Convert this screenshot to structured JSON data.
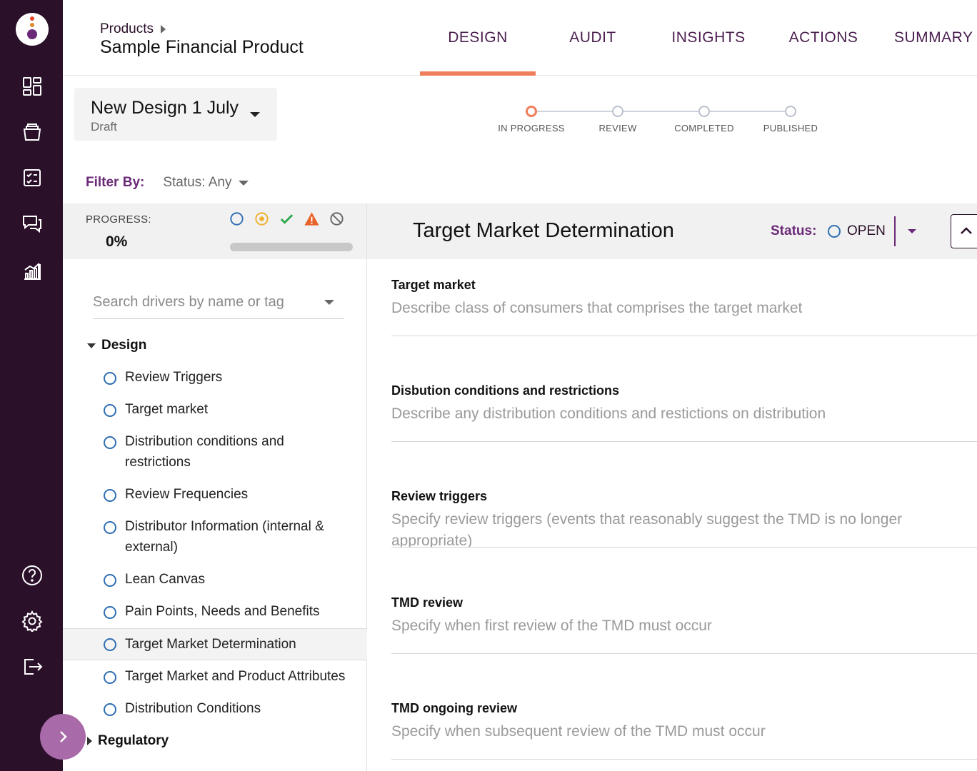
{
  "breadcrumb": {
    "parent": "Products"
  },
  "page_title": "Sample Financial Product",
  "tabs": [
    {
      "label": "DESIGN",
      "active": true
    },
    {
      "label": "AUDIT"
    },
    {
      "label": "INSIGHTS"
    },
    {
      "label": "ACTIONS"
    },
    {
      "label": "SUMMARY"
    }
  ],
  "design_selector": {
    "name": "New Design 1 July",
    "status": "Draft"
  },
  "stepper": {
    "current": "IN PROGRESS",
    "steps": [
      "IN PROGRESS",
      "REVIEW",
      "COMPLETED",
      "PUBLISHED"
    ]
  },
  "filter": {
    "label": "Filter By:",
    "value": "Status: Any"
  },
  "progress": {
    "label": "PROGRESS:",
    "value": "0%",
    "fraction": 0
  },
  "status_icons": [
    "open-circle-icon",
    "in-progress-icon",
    "check-icon",
    "warning-icon",
    "blocked-icon"
  ],
  "sidebar": {
    "search_placeholder": "Search drivers by name or tag",
    "groups": [
      {
        "label": "Design",
        "expanded": true
      },
      {
        "label": "Regulatory",
        "expanded": false
      }
    ],
    "items": [
      "Review Triggers",
      "Target market",
      "Distribution conditions and restrictions",
      "Review Frequencies",
      "Distributor Information (internal & external)",
      "Lean Canvas",
      "Pain Points, Needs and Benefits",
      "Target Market Determination",
      "Target Market and Product Attributes",
      "Distribution Conditions"
    ],
    "selected": "Target Market Determination"
  },
  "main": {
    "title": "Target Market Determination",
    "status_label": "Status:",
    "status_value": "OPEN",
    "fields": [
      {
        "label": "Target market",
        "placeholder": "Describe class of consumers that comprises the target market"
      },
      {
        "label": "Disbution conditions and restrictions",
        "placeholder": "Describe any distribution conditions and restictions on distribution"
      },
      {
        "label": "Review triggers",
        "placeholder": "Specify review triggers (events that reasonably suggest the TMD is no longer appropriate)"
      },
      {
        "label": "TMD review",
        "placeholder": "Specify when first review of the TMD must occur"
      },
      {
        "label": "TMD ongoing review",
        "placeholder": "Specify when subsequent review of the TMD must occur"
      }
    ]
  },
  "colors": {
    "rail": "#2a1029",
    "accent": "#ef7f5c",
    "brand_purple": "#6b2a78",
    "open_blue": "#2f6fb3"
  }
}
